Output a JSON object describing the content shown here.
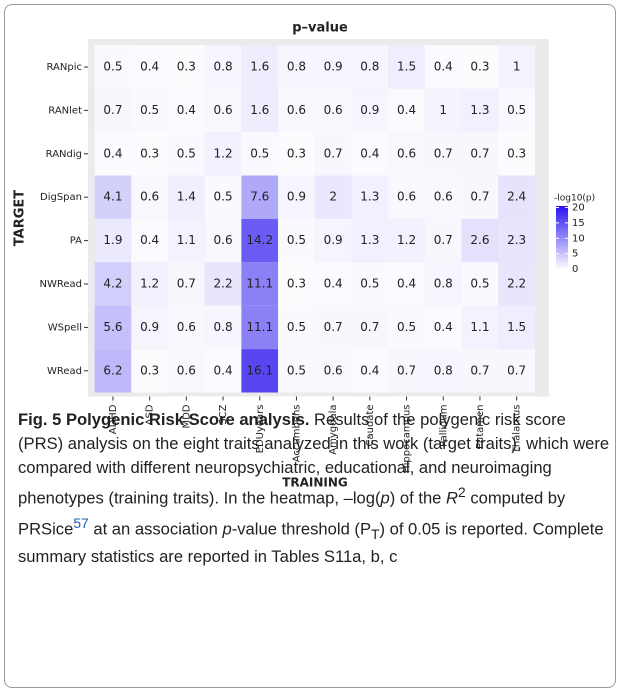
{
  "chart_data": {
    "type": "heatmap",
    "title": "p–value",
    "x_label": "TRAINING",
    "y_label": "TARGET",
    "categories": [
      "ADHD",
      "ASD",
      "MDD",
      "SCZ",
      "EDUyears",
      "Accumbens",
      "Amygdala",
      "Caudate",
      "Hippocampus",
      "Pallidum",
      "Putamen",
      "Thalamus"
    ],
    "rows": [
      "RANpic",
      "RANlet",
      "RANdig",
      "DigSpan",
      "PA",
      "NWRead",
      "WSpell",
      "WRead"
    ],
    "values": [
      [
        0.5,
        0.4,
        0.3,
        0.8,
        1.6,
        0.8,
        0.9,
        0.8,
        1.5,
        0.4,
        0.3,
        1
      ],
      [
        0.7,
        0.5,
        0.4,
        0.6,
        1.6,
        0.6,
        0.6,
        0.9,
        0.4,
        1,
        1.3,
        0.5
      ],
      [
        0.4,
        0.3,
        0.5,
        1.2,
        0.5,
        0.3,
        0.7,
        0.4,
        0.6,
        0.7,
        0.7,
        0.3
      ],
      [
        4.1,
        0.6,
        1.4,
        0.5,
        7.6,
        0.9,
        2,
        1.3,
        0.6,
        0.6,
        0.7,
        2.4
      ],
      [
        1.9,
        0.4,
        1.1,
        0.6,
        14.2,
        0.5,
        0.9,
        1.3,
        1.2,
        0.7,
        2.6,
        2.3
      ],
      [
        4.2,
        1.2,
        0.7,
        2.2,
        11.1,
        0.3,
        0.4,
        0.5,
        0.4,
        0.8,
        0.5,
        2.2
      ],
      [
        5.6,
        0.9,
        0.6,
        0.8,
        11.1,
        0.5,
        0.7,
        0.7,
        0.5,
        0.4,
        1.1,
        1.5
      ],
      [
        6.2,
        0.3,
        0.6,
        0.4,
        16.1,
        0.5,
        0.6,
        0.4,
        0.7,
        0.8,
        0.7,
        0.7
      ]
    ],
    "colorbar": {
      "title": "-log10(p)",
      "lim": [
        0,
        20.5
      ],
      "ticks": [
        20,
        15,
        10,
        5,
        0
      ],
      "colors": [
        "#ffffff",
        "#2a14f0"
      ]
    }
  },
  "caption": {
    "parts": [
      "Fig. 5 Polygenic Risk Score analysis.",
      " Results of the polygenic risk score (PRS) analysis on the eight traits analyzed in this work (target traits), which were compared with different neuropsychiatric, educational, and neuroimaging phenotypes (training traits). In the heatmap, –log(",
      "p",
      ") of the ",
      "R",
      "2",
      " computed by PRSice",
      "57",
      " at an association ",
      "p",
      "-value threshold (P",
      "T",
      ") of 0.05 is reported. Complete summary statistics are reported in Tables S11a, b, c"
    ]
  }
}
